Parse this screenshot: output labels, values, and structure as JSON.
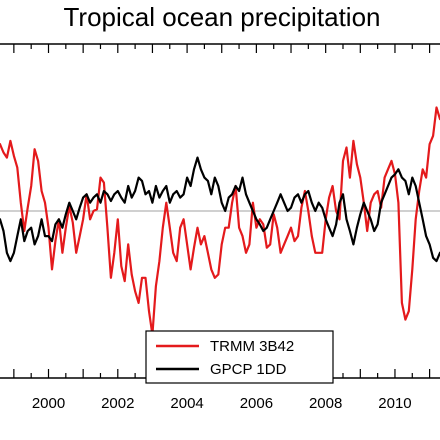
{
  "chart_data": {
    "type": "line",
    "title": "Tropical ocean precipitation",
    "xlim": [
      1998.6,
      2011.3
    ],
    "ylim": [
      -1.0,
      1.0
    ],
    "xticks": [
      2000,
      2002,
      2004,
      2006,
      2008,
      2010
    ],
    "xtick_labels": [
      "2000",
      "2002",
      "2004",
      "2006",
      "2008",
      "2010"
    ],
    "zero_line": 0,
    "grid": false,
    "legend_position": "bottom-center",
    "colors": {
      "TRMM 3B42": "#e41a1c",
      "GPCP 1DD": "#000000"
    },
    "series": [
      {
        "name": "TRMM 3B42",
        "color": "#e41a1c",
        "x": [
          1998.6,
          1998.7,
          1998.8,
          1998.9,
          1999.0,
          1999.1,
          1999.2,
          1999.3,
          1999.4,
          1999.5,
          1999.6,
          1999.7,
          1999.8,
          1999.9,
          2000.0,
          2000.1,
          2000.2,
          2000.3,
          2000.4,
          2000.5,
          2000.6,
          2000.7,
          2000.8,
          2000.9,
          2001.0,
          2001.1,
          2001.2,
          2001.3,
          2001.4,
          2001.5,
          2001.6,
          2001.7,
          2001.8,
          2001.9,
          2002.0,
          2002.1,
          2002.2,
          2002.3,
          2002.4,
          2002.5,
          2002.6,
          2002.7,
          2002.8,
          2002.9,
          2003.0,
          2003.1,
          2003.2,
          2003.3,
          2003.4,
          2003.5,
          2003.6,
          2003.7,
          2003.8,
          2003.9,
          2004.0,
          2004.1,
          2004.2,
          2004.3,
          2004.4,
          2004.5,
          2004.6,
          2004.7,
          2004.8,
          2004.9,
          2005.0,
          2005.1,
          2005.2,
          2005.3,
          2005.4,
          2005.5,
          2005.6,
          2005.7,
          2005.8,
          2005.9,
          2006.0,
          2006.1,
          2006.2,
          2006.3,
          2006.4,
          2006.5,
          2006.6,
          2006.7,
          2006.8,
          2006.9,
          2007.0,
          2007.1,
          2007.2,
          2007.3,
          2007.4,
          2007.5,
          2007.6,
          2007.7,
          2007.8,
          2007.9,
          2008.0,
          2008.1,
          2008.2,
          2008.3,
          2008.4,
          2008.5,
          2008.6,
          2008.7,
          2008.8,
          2008.9,
          2009.0,
          2009.1,
          2009.2,
          2009.3,
          2009.4,
          2009.5,
          2009.6,
          2009.7,
          2009.8,
          2009.9,
          2010.0,
          2010.1,
          2010.2,
          2010.3,
          2010.4,
          2010.5,
          2010.6,
          2010.7,
          2010.8,
          2010.9,
          2011.0,
          2011.1,
          2011.2,
          2011.3
        ],
        "y": [
          0.4,
          0.35,
          0.32,
          0.42,
          0.33,
          0.26,
          0.05,
          -0.12,
          0.02,
          0.15,
          0.37,
          0.3,
          0.12,
          0.05,
          -0.1,
          -0.35,
          -0.18,
          -0.05,
          -0.25,
          -0.1,
          0.03,
          -0.07,
          -0.25,
          -0.15,
          -0.05,
          0.1,
          -0.05,
          0.0,
          0.01,
          0.2,
          0.17,
          -0.1,
          -0.4,
          -0.25,
          -0.05,
          -0.33,
          -0.42,
          -0.2,
          -0.38,
          -0.48,
          -0.55,
          -0.4,
          -0.4,
          -0.6,
          -0.74,
          -0.45,
          -0.3,
          -0.1,
          0.05,
          -0.1,
          -0.25,
          -0.3,
          -0.1,
          -0.05,
          -0.2,
          -0.35,
          -0.22,
          -0.1,
          -0.2,
          -0.15,
          -0.25,
          -0.35,
          -0.4,
          -0.38,
          -0.2,
          -0.1,
          -0.1,
          0.05,
          0.15,
          -0.1,
          -0.15,
          -0.25,
          -0.2,
          0.05,
          -0.1,
          -0.05,
          -0.08,
          -0.22,
          -0.2,
          -0.02,
          -0.1,
          -0.25,
          -0.2,
          -0.15,
          -0.1,
          -0.18,
          -0.15,
          0.02,
          0.12,
          0.0,
          -0.15,
          -0.25,
          -0.25,
          -0.25,
          -0.05,
          0.08,
          0.15,
          0.0,
          -0.05,
          0.3,
          0.38,
          0.2,
          0.42,
          0.28,
          0.2,
          0.05,
          -0.12,
          0.05,
          0.1,
          0.12,
          0.02,
          0.2,
          0.25,
          0.3,
          0.22,
          0.05,
          -0.55,
          -0.65,
          -0.6,
          -0.35,
          -0.05,
          0.12,
          0.25,
          0.2,
          0.4,
          0.45,
          0.62,
          0.55
        ]
      },
      {
        "name": "GPCP 1DD",
        "color": "#000000",
        "x": [
          1998.6,
          1998.7,
          1998.8,
          1998.9,
          1999.0,
          1999.1,
          1999.2,
          1999.3,
          1999.4,
          1999.5,
          1999.6,
          1999.7,
          1999.8,
          1999.9,
          2000.0,
          2000.1,
          2000.2,
          2000.3,
          2000.4,
          2000.5,
          2000.6,
          2000.7,
          2000.8,
          2000.9,
          2001.0,
          2001.1,
          2001.2,
          2001.3,
          2001.4,
          2001.5,
          2001.6,
          2001.7,
          2001.8,
          2001.9,
          2002.0,
          2002.1,
          2002.2,
          2002.3,
          2002.4,
          2002.5,
          2002.6,
          2002.7,
          2002.8,
          2002.9,
          2003.0,
          2003.1,
          2003.2,
          2003.3,
          2003.4,
          2003.5,
          2003.6,
          2003.7,
          2003.8,
          2003.9,
          2004.0,
          2004.1,
          2004.2,
          2004.3,
          2004.4,
          2004.5,
          2004.6,
          2004.7,
          2004.8,
          2004.9,
          2005.0,
          2005.1,
          2005.2,
          2005.3,
          2005.4,
          2005.5,
          2005.6,
          2005.7,
          2005.8,
          2005.9,
          2006.0,
          2006.1,
          2006.2,
          2006.3,
          2006.4,
          2006.5,
          2006.6,
          2006.7,
          2006.8,
          2006.9,
          2007.0,
          2007.1,
          2007.2,
          2007.3,
          2007.4,
          2007.5,
          2007.6,
          2007.7,
          2007.8,
          2007.9,
          2008.0,
          2008.1,
          2008.2,
          2008.3,
          2008.4,
          2008.5,
          2008.6,
          2008.7,
          2008.8,
          2008.9,
          2009.0,
          2009.1,
          2009.2,
          2009.3,
          2009.4,
          2009.5,
          2009.6,
          2009.7,
          2009.8,
          2009.9,
          2010.0,
          2010.1,
          2010.2,
          2010.3,
          2010.4,
          2010.5,
          2010.6,
          2010.7,
          2010.8,
          2010.9,
          2011.0,
          2011.1,
          2011.2,
          2011.3
        ],
        "y": [
          -0.05,
          -0.12,
          -0.25,
          -0.3,
          -0.25,
          -0.15,
          -0.05,
          -0.18,
          -0.12,
          -0.1,
          -0.2,
          -0.15,
          -0.05,
          -0.15,
          -0.15,
          -0.18,
          -0.08,
          -0.05,
          -0.1,
          -0.02,
          0.05,
          0.0,
          -0.05,
          0.02,
          0.08,
          0.1,
          0.05,
          0.08,
          0.1,
          0.05,
          0.12,
          0.1,
          0.06,
          0.1,
          0.12,
          0.08,
          0.05,
          0.15,
          0.08,
          0.12,
          0.2,
          0.18,
          0.1,
          0.12,
          0.05,
          0.15,
          0.08,
          0.12,
          0.15,
          0.05,
          0.1,
          0.12,
          0.08,
          0.1,
          0.2,
          0.15,
          0.25,
          0.32,
          0.25,
          0.2,
          0.18,
          0.1,
          0.2,
          0.15,
          0.05,
          0.0,
          0.08,
          0.1,
          0.15,
          0.12,
          0.2,
          0.1,
          0.05,
          0.0,
          -0.05,
          -0.08,
          -0.12,
          -0.1,
          -0.05,
          0.0,
          0.05,
          0.1,
          0.05,
          0.0,
          0.02,
          0.08,
          0.1,
          0.05,
          0.1,
          0.12,
          0.05,
          0.0,
          0.05,
          0.02,
          -0.05,
          -0.1,
          -0.15,
          -0.08,
          0.05,
          0.1,
          -0.05,
          -0.12,
          -0.2,
          -0.1,
          -0.02,
          0.05,
          0.0,
          -0.05,
          -0.12,
          -0.08,
          0.05,
          0.1,
          0.15,
          0.2,
          0.22,
          0.25,
          0.2,
          0.18,
          0.1,
          0.2,
          0.15,
          0.05,
          -0.05,
          -0.15,
          -0.2,
          -0.28,
          -0.3,
          -0.25
        ]
      }
    ]
  }
}
